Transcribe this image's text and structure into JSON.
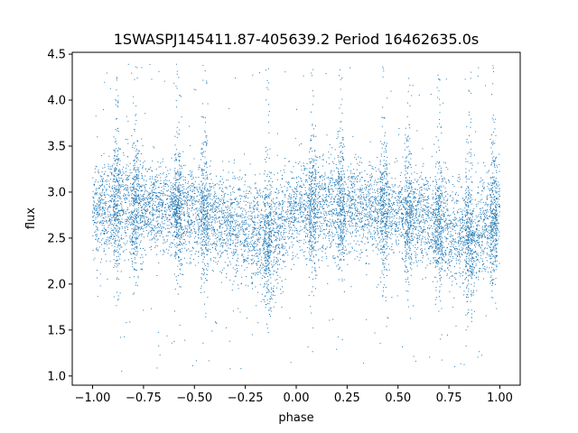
{
  "chart_data": {
    "type": "scatter",
    "title": "1SWASPJ145411.87-405639.2 Period 16462635.0s",
    "xlabel": "phase",
    "ylabel": "flux",
    "xlim": [
      -1.1,
      1.1
    ],
    "ylim": [
      0.9,
      4.52
    ],
    "x_ticks": [
      -1.0,
      -0.75,
      -0.5,
      -0.25,
      0.0,
      0.25,
      0.5,
      0.75,
      1.0
    ],
    "x_tick_labels": [
      "−1.00",
      "−0.75",
      "−0.50",
      "−0.25",
      "0.00",
      "0.25",
      "0.50",
      "0.75",
      "1.00"
    ],
    "y_ticks": [
      1.0,
      1.5,
      2.0,
      2.5,
      3.0,
      3.5,
      4.0,
      4.5
    ],
    "y_tick_labels": [
      "1.0",
      "1.5",
      "2.0",
      "2.5",
      "3.0",
      "3.5",
      "4.0",
      "4.5"
    ],
    "grid": false,
    "marker_color": "#1f77b4",
    "x_range": [
      -1.0,
      1.0
    ],
    "baseline_flux_profile": {
      "phase": [
        -1.0,
        -0.875,
        -0.75,
        -0.625,
        -0.5,
        -0.375,
        -0.25,
        -0.125,
        0.0,
        0.125,
        0.25,
        0.375,
        0.5,
        0.625,
        0.75,
        0.875,
        1.0
      ],
      "flux": [
        2.8,
        2.85,
        2.85,
        2.82,
        2.8,
        2.7,
        2.6,
        2.5,
        2.8,
        2.85,
        2.85,
        2.82,
        2.8,
        2.7,
        2.6,
        2.5,
        2.8
      ],
      "spread": [
        0.25,
        0.28,
        0.25,
        0.22,
        0.22,
        0.25,
        0.28,
        0.3,
        0.25,
        0.28,
        0.25,
        0.22,
        0.22,
        0.25,
        0.28,
        0.3,
        0.25
      ]
    },
    "outlier_flux_range": [
      1.05,
      4.42
    ],
    "dense_phase_columns": [
      -0.88,
      -0.79,
      -0.58,
      -0.45,
      -0.14,
      0.08,
      0.22,
      0.43,
      0.55,
      0.7,
      0.85,
      0.97
    ]
  }
}
